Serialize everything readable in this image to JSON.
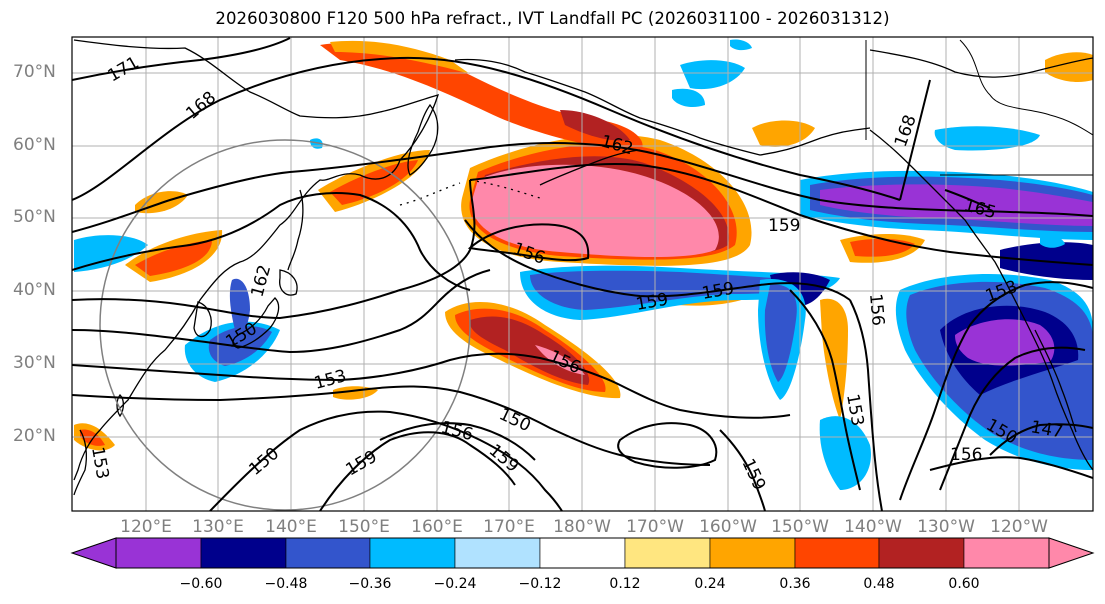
{
  "title": "2026030800 F120 500 hPa refract., IVT Landfall PC (2026031100 - 2026031312)",
  "map": {
    "latitude_labels": [
      "70°N",
      "60°N",
      "50°N",
      "40°N",
      "30°N",
      "20°N"
    ],
    "longitude_labels": [
      "120°E",
      "130°E",
      "140°E",
      "150°E",
      "160°E",
      "170°E",
      "180°W",
      "170°W",
      "160°W",
      "150°W",
      "140°W",
      "130°W",
      "120°W"
    ],
    "contour_labels": [
      "171",
      "168",
      "162",
      "162",
      "165",
      "168",
      "159",
      "156",
      "159",
      "159",
      "156",
      "153",
      "150",
      "156",
      "159",
      "150",
      "159",
      "153",
      "156",
      "153",
      "150",
      "159",
      "147",
      "150",
      "156",
      "153"
    ]
  },
  "colorbar": {
    "ticks": [
      "−0.60",
      "−0.48",
      "−0.36",
      "−0.24",
      "−0.12",
      "0.12",
      "0.24",
      "0.36",
      "0.48",
      "0.60"
    ],
    "colors": [
      "#9933d6",
      "#00008c",
      "#3355cc",
      "#00bbff",
      "#b0e2ff",
      "#ffffff",
      "#ffe680",
      "#ffa500",
      "#ff4500",
      "#b22222",
      "#ff88aa"
    ]
  }
}
